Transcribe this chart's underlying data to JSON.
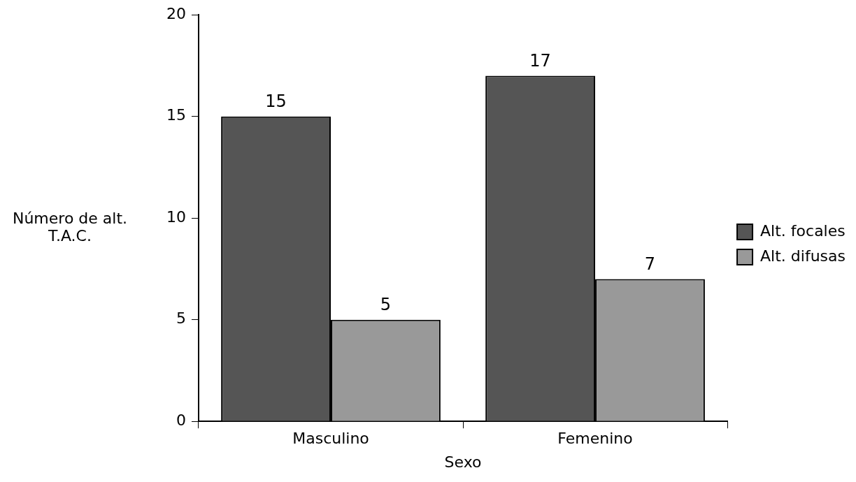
{
  "chart_data": {
    "type": "bar",
    "xlabel": "Sexo",
    "ylabel": "Número de alt. T.A.C.",
    "categories": [
      "Masculino",
      "Femenino"
    ],
    "series": [
      {
        "name": "Alt. focales",
        "color": "#555555",
        "values": [
          15,
          17
        ]
      },
      {
        "name": "Alt. difusas",
        "color": "#999999",
        "values": [
          5,
          7
        ]
      }
    ],
    "ylim": [
      0,
      20
    ],
    "yticks": [
      0,
      5,
      10,
      15,
      20
    ],
    "grid": false,
    "legend": "right",
    "data_labels": true
  }
}
